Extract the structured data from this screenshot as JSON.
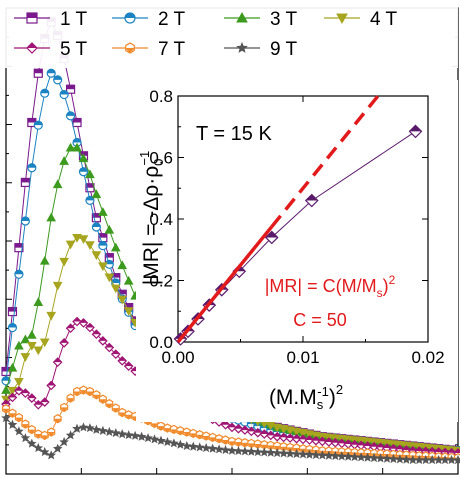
{
  "chart_data": [
    {
      "id": "main",
      "type": "line",
      "title": "",
      "xlabel": "",
      "ylabel": "",
      "legend": {
        "placement": "top",
        "entries": [
          {
            "label": "1 T",
            "color": "#7a1a8c",
            "marker": "square-half"
          },
          {
            "label": "2 T",
            "color": "#1b83c2",
            "marker": "circle-half"
          },
          {
            "label": "3 T",
            "color": "#3c9a1e",
            "marker": "triangle-up"
          },
          {
            "label": "4 T",
            "color": "#a7a51f",
            "marker": "triangle-down"
          },
          {
            "label": "5 T",
            "color": "#a01474",
            "marker": "diamond-half"
          },
          {
            "label": "7 T",
            "color": "#f08a2a",
            "marker": "hexagon-half"
          },
          {
            "label": "9 T",
            "color": "#555555",
            "marker": "star"
          }
        ]
      },
      "xlim": [
        0,
        1
      ],
      "ylim": [
        0,
        1
      ],
      "series": [
        {
          "label": "1 T",
          "color": "#7a1a8c",
          "x": [
            0.0,
            0.02,
            0.04,
            0.06,
            0.08,
            0.1,
            0.12,
            0.14,
            0.16,
            0.18,
            0.2,
            0.25,
            0.3,
            0.35,
            0.4,
            0.5,
            0.6,
            0.7,
            0.8,
            0.9,
            1.0
          ],
          "y": [
            0.22,
            0.4,
            0.6,
            0.78,
            0.92,
            0.97,
            0.93,
            0.84,
            0.74,
            0.64,
            0.55,
            0.4,
            0.3,
            0.23,
            0.18,
            0.13,
            0.1,
            0.08,
            0.07,
            0.06,
            0.05
          ]
        },
        {
          "label": "2 T",
          "color": "#1b83c2",
          "x": [
            0.0,
            0.02,
            0.04,
            0.06,
            0.08,
            0.1,
            0.12,
            0.14,
            0.16,
            0.18,
            0.2,
            0.25,
            0.3,
            0.35,
            0.4,
            0.5,
            0.6,
            0.7,
            0.8,
            0.9,
            1.0
          ],
          "y": [
            0.2,
            0.36,
            0.52,
            0.68,
            0.8,
            0.86,
            0.84,
            0.78,
            0.7,
            0.61,
            0.53,
            0.39,
            0.29,
            0.22,
            0.17,
            0.12,
            0.09,
            0.075,
            0.065,
            0.055,
            0.05
          ]
        },
        {
          "label": "3 T",
          "color": "#3c9a1e",
          "x": [
            0.0,
            0.03,
            0.06,
            0.08,
            0.1,
            0.12,
            0.14,
            0.16,
            0.18,
            0.2,
            0.23,
            0.26,
            0.3,
            0.35,
            0.4,
            0.5,
            0.6,
            0.7,
            0.8,
            0.9,
            1.0
          ],
          "y": [
            0.18,
            0.28,
            0.3,
            0.42,
            0.55,
            0.65,
            0.7,
            0.7,
            0.66,
            0.6,
            0.52,
            0.44,
            0.35,
            0.27,
            0.21,
            0.14,
            0.1,
            0.08,
            0.07,
            0.06,
            0.05
          ]
        },
        {
          "label": "4 T",
          "color": "#a7a51f",
          "x": [
            0.0,
            0.03,
            0.05,
            0.08,
            0.1,
            0.12,
            0.14,
            0.16,
            0.18,
            0.2,
            0.23,
            0.26,
            0.3,
            0.35,
            0.4,
            0.5,
            0.6,
            0.7,
            0.8,
            0.9,
            1.0
          ],
          "y": [
            0.16,
            0.2,
            0.28,
            0.26,
            0.34,
            0.43,
            0.49,
            0.51,
            0.5,
            0.47,
            0.42,
            0.37,
            0.3,
            0.24,
            0.19,
            0.13,
            0.1,
            0.08,
            0.07,
            0.06,
            0.05
          ]
        },
        {
          "label": "5 T",
          "color": "#a01474",
          "x": [
            0.0,
            0.03,
            0.05,
            0.08,
            0.1,
            0.12,
            0.14,
            0.16,
            0.18,
            0.2,
            0.23,
            0.26,
            0.3,
            0.35,
            0.4,
            0.5,
            0.6,
            0.7,
            0.8,
            0.9,
            1.0
          ],
          "y": [
            0.15,
            0.18,
            0.17,
            0.14,
            0.19,
            0.26,
            0.31,
            0.33,
            0.32,
            0.3,
            0.27,
            0.24,
            0.21,
            0.17,
            0.14,
            0.1,
            0.08,
            0.07,
            0.06,
            0.05,
            0.045
          ]
        },
        {
          "label": "7 T",
          "color": "#f08a2a",
          "x": [
            0.0,
            0.03,
            0.05,
            0.08,
            0.1,
            0.12,
            0.14,
            0.16,
            0.18,
            0.2,
            0.23,
            0.26,
            0.3,
            0.35,
            0.4,
            0.5,
            0.6,
            0.7,
            0.8,
            0.9,
            1.0
          ],
          "y": [
            0.14,
            0.12,
            0.1,
            0.08,
            0.09,
            0.13,
            0.16,
            0.18,
            0.18,
            0.17,
            0.15,
            0.13,
            0.12,
            0.1,
            0.09,
            0.07,
            0.06,
            0.05,
            0.045,
            0.04,
            0.035
          ]
        },
        {
          "label": "9 T",
          "color": "#555555",
          "x": [
            0.0,
            0.03,
            0.05,
            0.08,
            0.1,
            0.12,
            0.14,
            0.16,
            0.18,
            0.2,
            0.23,
            0.26,
            0.3,
            0.35,
            0.4,
            0.5,
            0.6,
            0.7,
            0.8,
            0.9,
            1.0
          ],
          "y": [
            0.12,
            0.09,
            0.07,
            0.05,
            0.04,
            0.06,
            0.08,
            0.1,
            0.1,
            0.095,
            0.09,
            0.085,
            0.08,
            0.07,
            0.06,
            0.05,
            0.045,
            0.04,
            0.035,
            0.03,
            0.03
          ]
        }
      ]
    },
    {
      "id": "inset",
      "type": "scatter",
      "title": "",
      "annotation": "T = 15 K",
      "ylabel_parts": {
        "main": "|MR| = -Δρ·ρ",
        "sub": "0",
        "sup": "−1"
      },
      "xlabel_parts": {
        "main": "(M.M",
        "sub": "s",
        "sup": "-1",
        "tail": ")",
        "sup2": "2"
      },
      "fit_label_parts": {
        "main": "|MR| = C(M/M",
        "sub": "s",
        "tail": ")",
        "sup": "2"
      },
      "fit_constant": "C = 50",
      "xlim": [
        0,
        0.02
      ],
      "ylim": [
        0,
        0.8
      ],
      "xticks": [
        0.0,
        0.01,
        0.02
      ],
      "xtick_labels": [
        "0.00",
        "0.01",
        "0.02"
      ],
      "yticks": [
        0.0,
        0.2,
        0.4,
        0.6,
        0.8
      ],
      "ytick_labels": [
        "0.0",
        "0.2",
        "0.4",
        "0.6",
        "0.8"
      ],
      "data": {
        "x": [
          0.0002,
          0.0008,
          0.0016,
          0.0025,
          0.0035,
          0.0049,
          0.0075,
          0.0107,
          0.019
        ],
        "y": [
          0.01,
          0.035,
          0.075,
          0.12,
          0.17,
          0.23,
          0.34,
          0.46,
          0.685
        ],
        "color": "#5a1a6a"
      },
      "fit": {
        "slope": 50,
        "color": "#e31a1c",
        "solid_x": [
          0.0,
          0.0075
        ],
        "dashed_x": [
          0.0075,
          0.016
        ]
      }
    }
  ]
}
